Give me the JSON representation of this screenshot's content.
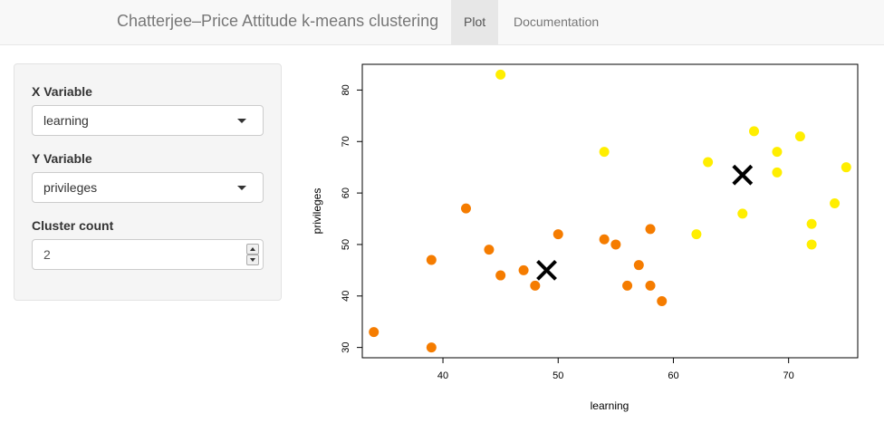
{
  "navbar": {
    "title": "Chatterjee–Price Attitude k-means clustering",
    "tabs": [
      {
        "label": "Plot",
        "active": true
      },
      {
        "label": "Documentation",
        "active": false
      }
    ]
  },
  "sidebar": {
    "x_label": "X Variable",
    "x_value": "learning",
    "y_label": "Y Variable",
    "y_value": "privileges",
    "count_label": "Cluster count",
    "count_value": "2"
  },
  "chart_data": {
    "type": "scatter",
    "xlabel": "learning",
    "ylabel": "privileges",
    "xlim": [
      33,
      76
    ],
    "ylim": [
      28,
      85
    ],
    "xticks": [
      40,
      50,
      60,
      70
    ],
    "yticks": [
      30,
      40,
      50,
      60,
      70,
      80
    ],
    "series": [
      {
        "color": "#f57c00",
        "points": [
          [
            34,
            33
          ],
          [
            39,
            30
          ],
          [
            39,
            47
          ],
          [
            42,
            57
          ],
          [
            44,
            49
          ],
          [
            45,
            44
          ],
          [
            47,
            45
          ],
          [
            48,
            42
          ],
          [
            50,
            52
          ],
          [
            54,
            51
          ],
          [
            55,
            50
          ],
          [
            56,
            42
          ],
          [
            57,
            46
          ],
          [
            58,
            42
          ],
          [
            58,
            53
          ],
          [
            59,
            39
          ]
        ]
      },
      {
        "color": "#ffee00",
        "points": [
          [
            45,
            83
          ],
          [
            54,
            68
          ],
          [
            62,
            52
          ],
          [
            63,
            66
          ],
          [
            66,
            56
          ],
          [
            67,
            72
          ],
          [
            69,
            68
          ],
          [
            69,
            64
          ],
          [
            71,
            71
          ],
          [
            72,
            54
          ],
          [
            72,
            50
          ],
          [
            74,
            58
          ],
          [
            75,
            65
          ]
        ]
      }
    ],
    "centers": [
      [
        49,
        45
      ],
      [
        66,
        63.5
      ]
    ],
    "center_marker": "x",
    "center_color": "#000000"
  }
}
